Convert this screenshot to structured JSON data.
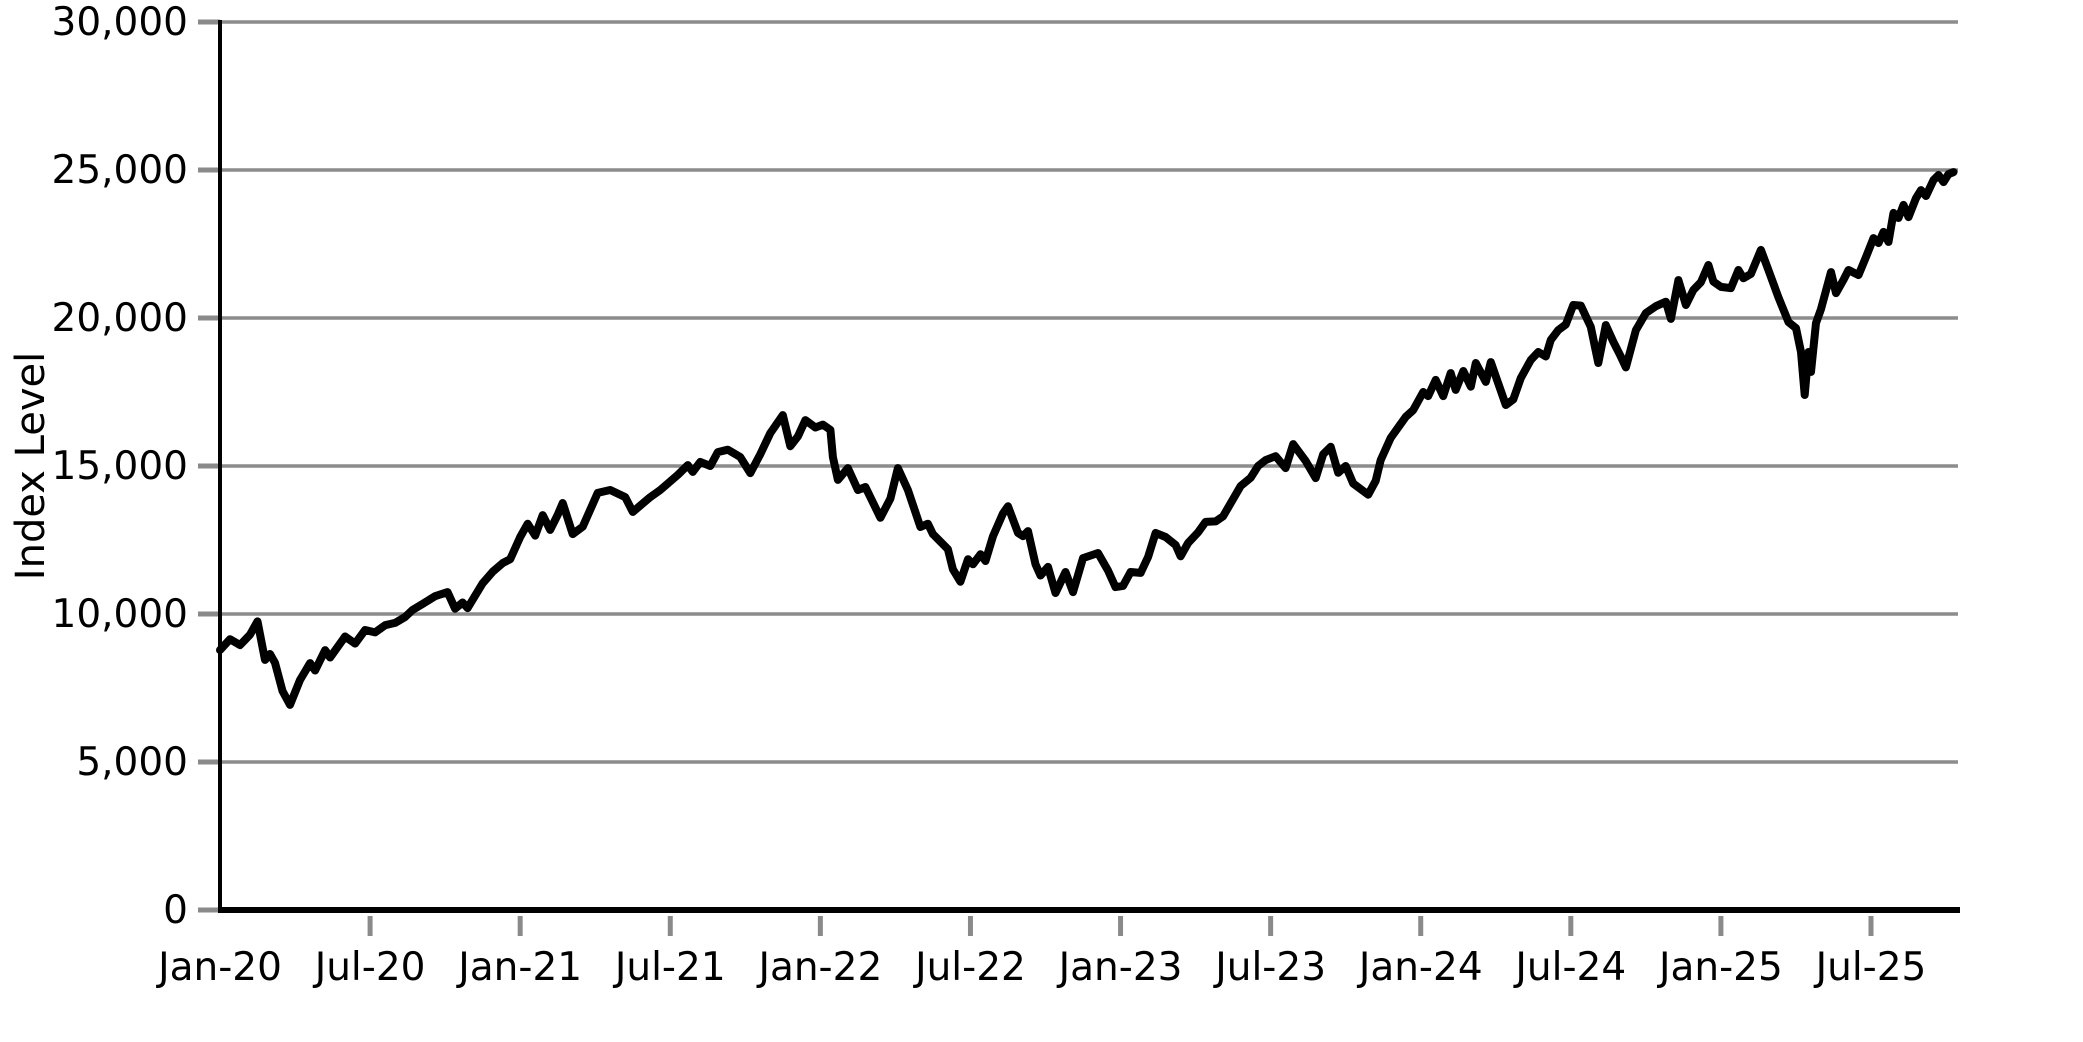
{
  "chart_data": {
    "type": "line",
    "title": "",
    "xlabel": "",
    "ylabel": "Index Level",
    "ylim": [
      0,
      30000
    ],
    "grid": "horizontal-only",
    "legend": "none",
    "x_axis": {
      "unit": "months-since-Jan-2020",
      "tick_month_offsets": [
        0,
        6,
        12,
        18,
        24,
        30,
        36,
        42,
        48,
        54,
        60,
        66
      ],
      "tick_labels": [
        "Jan-20",
        "Jul-20",
        "Jan-21",
        "Jul-21",
        "Jan-22",
        "Jul-22",
        "Jan-23",
        "Jul-23",
        "Jan-24",
        "Jul-24",
        "Jan-25",
        "Jul-25"
      ],
      "first_tick_mark_hidden": true
    },
    "y_axis": {
      "tick_values": [
        0,
        5000,
        10000,
        15000,
        20000,
        25000,
        30000
      ],
      "tick_labels": [
        "0",
        "5,000",
        "10,000",
        "15,000",
        "20,000",
        "25,000",
        "30,000"
      ]
    },
    "series": [
      {
        "name": "Index Level",
        "color": "#000000",
        "points": [
          [
            0.0,
            8780
          ],
          [
            0.4,
            9150
          ],
          [
            0.8,
            8950
          ],
          [
            1.2,
            9300
          ],
          [
            1.5,
            9750
          ],
          [
            1.8,
            8450
          ],
          [
            2.0,
            8650
          ],
          [
            2.2,
            8350
          ],
          [
            2.5,
            7400
          ],
          [
            2.8,
            6930
          ],
          [
            3.2,
            7770
          ],
          [
            3.6,
            8340
          ],
          [
            3.8,
            8090
          ],
          [
            4.2,
            8780
          ],
          [
            4.4,
            8530
          ],
          [
            5.0,
            9240
          ],
          [
            5.4,
            9000
          ],
          [
            5.8,
            9460
          ],
          [
            6.2,
            9380
          ],
          [
            6.6,
            9620
          ],
          [
            7.0,
            9700
          ],
          [
            7.4,
            9900
          ],
          [
            7.7,
            10140
          ],
          [
            8.1,
            10340
          ],
          [
            8.6,
            10600
          ],
          [
            9.1,
            10740
          ],
          [
            9.4,
            10180
          ],
          [
            9.7,
            10390
          ],
          [
            9.9,
            10200
          ],
          [
            10.5,
            11040
          ],
          [
            10.9,
            11430
          ],
          [
            11.3,
            11720
          ],
          [
            11.6,
            11850
          ],
          [
            12.0,
            12600
          ],
          [
            12.3,
            13050
          ],
          [
            12.6,
            12650
          ],
          [
            12.9,
            13340
          ],
          [
            13.2,
            12840
          ],
          [
            13.5,
            13350
          ],
          [
            13.7,
            13750
          ],
          [
            14.1,
            12700
          ],
          [
            14.5,
            12950
          ],
          [
            15.1,
            14090
          ],
          [
            15.6,
            14190
          ],
          [
            16.2,
            13950
          ],
          [
            16.5,
            13450
          ],
          [
            17.2,
            13950
          ],
          [
            17.6,
            14190
          ],
          [
            18.3,
            14700
          ],
          [
            18.7,
            15030
          ],
          [
            18.9,
            14800
          ],
          [
            19.2,
            15140
          ],
          [
            19.6,
            15000
          ],
          [
            19.9,
            15470
          ],
          [
            20.3,
            15550
          ],
          [
            20.8,
            15300
          ],
          [
            21.2,
            14760
          ],
          [
            21.6,
            15400
          ],
          [
            22.0,
            16110
          ],
          [
            22.5,
            16720
          ],
          [
            22.8,
            15670
          ],
          [
            23.1,
            16000
          ],
          [
            23.4,
            16550
          ],
          [
            23.8,
            16300
          ],
          [
            24.1,
            16400
          ],
          [
            24.4,
            16220
          ],
          [
            24.5,
            15300
          ],
          [
            24.7,
            14530
          ],
          [
            25.1,
            14930
          ],
          [
            25.5,
            14190
          ],
          [
            25.8,
            14290
          ],
          [
            26.4,
            13250
          ],
          [
            26.8,
            13900
          ],
          [
            27.1,
            14930
          ],
          [
            27.5,
            14190
          ],
          [
            28.0,
            12940
          ],
          [
            28.3,
            13050
          ],
          [
            28.5,
            12700
          ],
          [
            29.1,
            12190
          ],
          [
            29.3,
            11510
          ],
          [
            29.6,
            11090
          ],
          [
            29.9,
            11850
          ],
          [
            30.1,
            11680
          ],
          [
            30.4,
            12020
          ],
          [
            30.6,
            11790
          ],
          [
            30.9,
            12630
          ],
          [
            31.3,
            13400
          ],
          [
            31.5,
            13640
          ],
          [
            31.9,
            12740
          ],
          [
            32.1,
            12630
          ],
          [
            32.3,
            12800
          ],
          [
            32.6,
            11680
          ],
          [
            32.8,
            11300
          ],
          [
            33.1,
            11590
          ],
          [
            33.4,
            10710
          ],
          [
            33.8,
            11420
          ],
          [
            34.1,
            10740
          ],
          [
            34.5,
            11890
          ],
          [
            35.1,
            12060
          ],
          [
            35.5,
            11470
          ],
          [
            35.8,
            10910
          ],
          [
            36.1,
            10950
          ],
          [
            36.4,
            11420
          ],
          [
            36.8,
            11390
          ],
          [
            37.1,
            11930
          ],
          [
            37.4,
            12740
          ],
          [
            37.8,
            12600
          ],
          [
            38.2,
            12330
          ],
          [
            38.4,
            11950
          ],
          [
            38.7,
            12400
          ],
          [
            39.1,
            12760
          ],
          [
            39.4,
            13110
          ],
          [
            39.8,
            13130
          ],
          [
            40.1,
            13300
          ],
          [
            40.8,
            14320
          ],
          [
            41.2,
            14600
          ],
          [
            41.5,
            15000
          ],
          [
            41.8,
            15200
          ],
          [
            42.2,
            15330
          ],
          [
            42.6,
            14930
          ],
          [
            42.9,
            15740
          ],
          [
            43.4,
            15170
          ],
          [
            43.8,
            14590
          ],
          [
            44.1,
            15400
          ],
          [
            44.4,
            15650
          ],
          [
            44.7,
            14770
          ],
          [
            45.0,
            15000
          ],
          [
            45.3,
            14410
          ],
          [
            45.9,
            14030
          ],
          [
            46.2,
            14500
          ],
          [
            46.4,
            15200
          ],
          [
            46.8,
            15950
          ],
          [
            47.4,
            16660
          ],
          [
            47.7,
            16890
          ],
          [
            48.1,
            17500
          ],
          [
            48.3,
            17360
          ],
          [
            48.6,
            17910
          ],
          [
            48.9,
            17360
          ],
          [
            49.2,
            18140
          ],
          [
            49.4,
            17570
          ],
          [
            49.7,
            18210
          ],
          [
            50.0,
            17680
          ],
          [
            50.2,
            18480
          ],
          [
            50.6,
            17840
          ],
          [
            50.8,
            18510
          ],
          [
            51.4,
            17060
          ],
          [
            51.7,
            17250
          ],
          [
            52.0,
            17970
          ],
          [
            52.4,
            18580
          ],
          [
            52.7,
            18850
          ],
          [
            53.0,
            18700
          ],
          [
            53.2,
            19260
          ],
          [
            53.5,
            19590
          ],
          [
            53.8,
            19780
          ],
          [
            54.1,
            20440
          ],
          [
            54.4,
            20420
          ],
          [
            54.8,
            19700
          ],
          [
            55.1,
            18480
          ],
          [
            55.4,
            19760
          ],
          [
            55.7,
            19200
          ],
          [
            56.0,
            18700
          ],
          [
            56.2,
            18330
          ],
          [
            56.6,
            19590
          ],
          [
            57.0,
            20170
          ],
          [
            57.4,
            20400
          ],
          [
            57.8,
            20550
          ],
          [
            58.0,
            19970
          ],
          [
            58.3,
            21280
          ],
          [
            58.6,
            20440
          ],
          [
            58.9,
            20950
          ],
          [
            59.2,
            21210
          ],
          [
            59.5,
            21790
          ],
          [
            59.7,
            21230
          ],
          [
            60.0,
            21050
          ],
          [
            60.4,
            21010
          ],
          [
            60.7,
            21620
          ],
          [
            60.9,
            21340
          ],
          [
            61.2,
            21490
          ],
          [
            61.6,
            22300
          ],
          [
            61.9,
            21620
          ],
          [
            62.3,
            20700
          ],
          [
            62.7,
            19860
          ],
          [
            63.0,
            19660
          ],
          [
            63.2,
            18850
          ],
          [
            63.35,
            17400
          ],
          [
            63.5,
            18850
          ],
          [
            63.6,
            18180
          ],
          [
            63.8,
            19830
          ],
          [
            64.0,
            20300
          ],
          [
            64.4,
            21550
          ],
          [
            64.6,
            20840
          ],
          [
            64.9,
            21290
          ],
          [
            65.1,
            21620
          ],
          [
            65.5,
            21450
          ],
          [
            65.8,
            22060
          ],
          [
            66.1,
            22700
          ],
          [
            66.3,
            22530
          ],
          [
            66.5,
            22910
          ],
          [
            66.7,
            22570
          ],
          [
            66.9,
            23550
          ],
          [
            67.1,
            23380
          ],
          [
            67.3,
            23820
          ],
          [
            67.5,
            23410
          ],
          [
            67.8,
            24050
          ],
          [
            68.0,
            24320
          ],
          [
            68.2,
            24120
          ],
          [
            68.5,
            24660
          ],
          [
            68.7,
            24830
          ],
          [
            68.9,
            24590
          ],
          [
            69.1,
            24860
          ],
          [
            69.3,
            24930
          ]
        ]
      }
    ]
  },
  "style": {
    "background": "#ffffff",
    "line_color": "#000000",
    "grid_color": "#8c8c8c",
    "tick_color": "#8a8a8a",
    "axis_color": "#000000",
    "label_color": "#000000"
  }
}
